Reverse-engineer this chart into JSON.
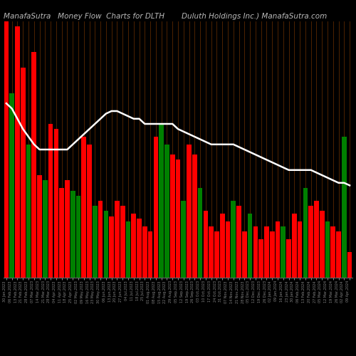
{
  "title_left": "ManafaSutra   Money Flow  Charts for DLTH",
  "title_right": "Duluth Holdings Inc.) ManafaSutra.com",
  "background_color": "#000000",
  "bar_colors": [
    "red",
    "green",
    "red",
    "red",
    "green",
    "red",
    "red",
    "green",
    "red",
    "red",
    "red",
    "red",
    "green",
    "green",
    "red",
    "red",
    "green",
    "red",
    "green",
    "red",
    "red",
    "red",
    "green",
    "red",
    "red",
    "red",
    "red",
    "red",
    "green",
    "green",
    "red",
    "red",
    "green",
    "red",
    "red",
    "green",
    "red",
    "red",
    "red",
    "red",
    "red",
    "green",
    "red",
    "red",
    "green",
    "red",
    "red",
    "red",
    "red",
    "red",
    "green",
    "red",
    "red",
    "red",
    "green",
    "red",
    "red",
    "red",
    "green",
    "red",
    "red",
    "green",
    "red"
  ],
  "bar_heights": [
    1.0,
    0.72,
    0.98,
    0.82,
    0.52,
    0.88,
    0.4,
    0.38,
    0.6,
    0.58,
    0.35,
    0.38,
    0.34,
    0.32,
    0.55,
    0.52,
    0.28,
    0.3,
    0.26,
    0.24,
    0.3,
    0.28,
    0.22,
    0.25,
    0.23,
    0.2,
    0.18,
    0.55,
    0.6,
    0.52,
    0.48,
    0.46,
    0.3,
    0.52,
    0.48,
    0.35,
    0.26,
    0.2,
    0.18,
    0.25,
    0.22,
    0.3,
    0.28,
    0.18,
    0.25,
    0.2,
    0.15,
    0.2,
    0.18,
    0.22,
    0.2,
    0.15,
    0.25,
    0.22,
    0.35,
    0.28,
    0.3,
    0.26,
    0.22,
    0.2,
    0.18,
    0.55,
    0.1
  ],
  "line_color": "#ffffff",
  "line_values": [
    0.68,
    0.66,
    0.62,
    0.58,
    0.55,
    0.52,
    0.5,
    0.5,
    0.5,
    0.5,
    0.5,
    0.5,
    0.52,
    0.54,
    0.56,
    0.58,
    0.6,
    0.62,
    0.64,
    0.65,
    0.65,
    0.64,
    0.63,
    0.62,
    0.62,
    0.6,
    0.6,
    0.6,
    0.6,
    0.6,
    0.6,
    0.58,
    0.57,
    0.56,
    0.55,
    0.54,
    0.53,
    0.52,
    0.52,
    0.52,
    0.52,
    0.52,
    0.51,
    0.5,
    0.49,
    0.48,
    0.47,
    0.46,
    0.45,
    0.44,
    0.43,
    0.42,
    0.42,
    0.42,
    0.42,
    0.42,
    0.41,
    0.4,
    0.39,
    0.38,
    0.37,
    0.37,
    0.36
  ],
  "grid_color": "#5a2800",
  "n_bars": 63,
  "ylim": [
    0,
    1.0
  ],
  "title_fontsize": 7.5,
  "title_color": "#bbbbbb",
  "date_labels": [
    "30 Jan,2023",
    "06 Feb,2023",
    "13 Feb,2023",
    "21 Feb,2023",
    "28 Feb,2023",
    "07 Mar,2023",
    "14 Mar,2023",
    "21 Mar,2023",
    "28 Mar,2023",
    "04 Apr,2023",
    "11 Apr,2023",
    "18 Apr,2023",
    "25 Apr,2023",
    "02 May,2023",
    "09 May,2023",
    "16 May,2023",
    "23 May,2023",
    "30 May,2023",
    "06 Jun,2023",
    "13 Jun,2023",
    "20 Jun,2023",
    "27 Jun,2023",
    "04 Jul,2023",
    "11 Jul,2023",
    "18 Jul,2023",
    "25 Jul,2023",
    "01 Aug,2023",
    "08 Aug,2023",
    "15 Aug,2023",
    "22 Aug,2023",
    "29 Aug,2023",
    "05 Sep,2023",
    "12 Sep,2023",
    "19 Sep,2023",
    "26 Sep,2023",
    "03 Oct,2023",
    "10 Oct,2023",
    "17 Oct,2023",
    "24 Oct,2023",
    "31 Oct,2023",
    "07 Nov,2023",
    "14 Nov,2023",
    "21 Nov,2023",
    "28 Nov,2023",
    "05 Dec,2023",
    "12 Dec,2023",
    "19 Dec,2023",
    "26 Dec,2023",
    "02 Jan,2024",
    "09 Jan,2024",
    "16 Jan,2024",
    "23 Jan,2024",
    "30 Jan,2024",
    "06 Feb,2024",
    "13 Feb,2024",
    "20 Feb,2024",
    "27 Feb,2024",
    "05 Mar,2024",
    "12 Mar,2024",
    "19 Mar,2024",
    "26 Mar,2024",
    "02 Apr,2024",
    "09 Apr,2024"
  ]
}
